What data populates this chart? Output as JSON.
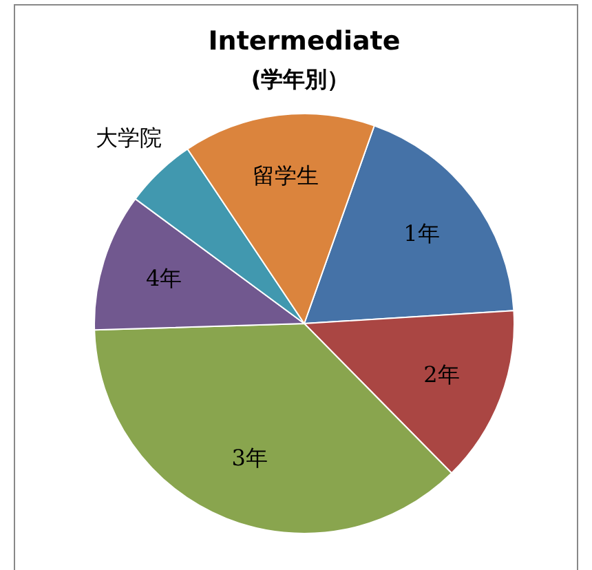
{
  "chart_data": {
    "type": "pie",
    "title": "Intermediate",
    "subtitle": "(学年別）",
    "categories": [
      "1年",
      "2年",
      "3年",
      "4年",
      "大学院",
      "留学生"
    ],
    "values": [
      18.6,
      13.6,
      36.9,
      10.6,
      5.5,
      14.8
    ],
    "colors": [
      "#4572a7",
      "#aa4643",
      "#89a54e",
      "#71588f",
      "#4198af",
      "#db843d"
    ],
    "legend": false
  }
}
